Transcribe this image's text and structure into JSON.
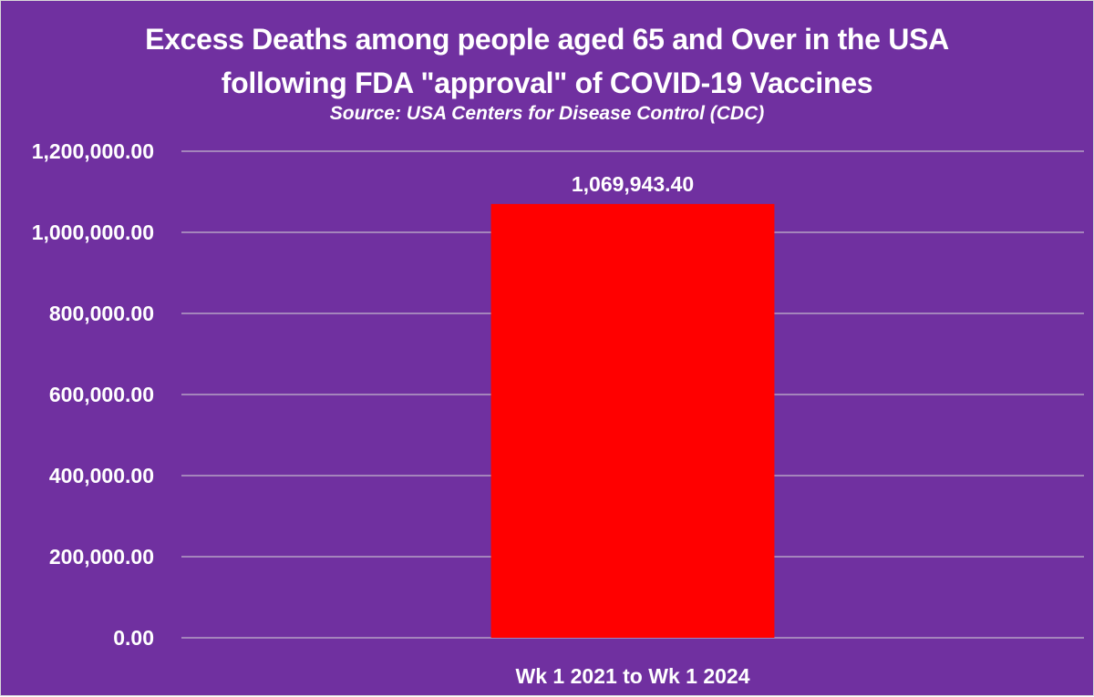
{
  "chart_data": {
    "type": "bar",
    "title": "Excess Deaths among people aged 65 and Over in the USA following FDA \"approval\" of COVID-19 Vaccines",
    "title_lines": [
      "Excess Deaths among people aged 65 and Over in the USA",
      "following FDA \"approval\" of COVID-19 Vaccines"
    ],
    "subtitle": "Source: USA Centers for Disease Control (CDC)",
    "categories": [
      "Wk 1 2021 to Wk 1 2024"
    ],
    "values": [
      1069943.4
    ],
    "data_labels": [
      "1,069,943.40"
    ],
    "ylim": [
      0,
      1200000
    ],
    "yticks": [
      0,
      200000,
      400000,
      600000,
      800000,
      1000000,
      1200000
    ],
    "ytick_labels": [
      "0.00",
      "200,000.00",
      "400,000.00",
      "600,000.00",
      "800,000.00",
      "1,000,000.00",
      "1,200,000.00"
    ],
    "grid": true,
    "legend": "none",
    "xlabel": "",
    "ylabel": "",
    "colors": {
      "background": "#7030A0",
      "bar": "#FF0000",
      "gridline": "#D9D9D9",
      "text": "#FFFFFF"
    }
  }
}
